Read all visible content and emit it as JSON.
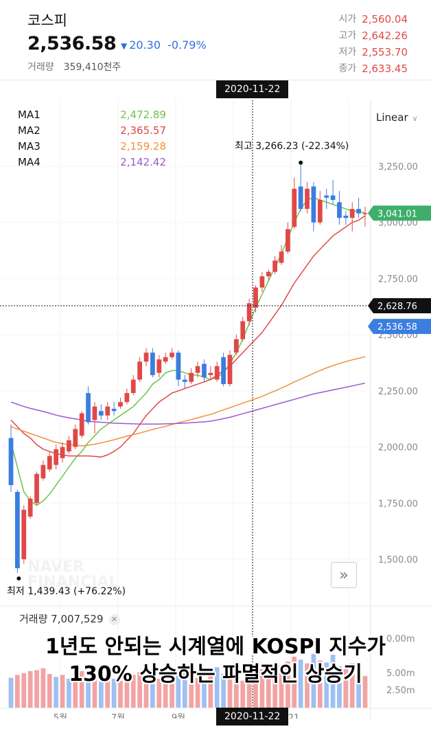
{
  "header": {
    "title": "코스피",
    "price": "2,536.58",
    "change_arrow": "▼",
    "change": "20.30",
    "change_pct": "-0.79%",
    "volume_label": "거래량",
    "volume_value": "359,410천주"
  },
  "ohlc": [
    {
      "label": "시가",
      "value": "2,560.04"
    },
    {
      "label": "고가",
      "value": "2,642.26"
    },
    {
      "label": "저가",
      "value": "2,553.70"
    },
    {
      "label": "종가",
      "value": "2,633.45"
    }
  ],
  "crosshair_date": "2020-11-22",
  "moving_averages": [
    {
      "label": "MA1",
      "value": "2,472.89",
      "color": "#6cc24a"
    },
    {
      "label": "MA2",
      "value": "2,365.57",
      "color": "#e04848"
    },
    {
      "label": "MA3",
      "value": "2,159.28",
      "color": "#f0903a"
    },
    {
      "label": "MA4",
      "value": "2,142.42",
      "color": "#9b59d0"
    }
  ],
  "scale_selector": "Linear",
  "high_label": "최고 3,266.23 (-22.34%)",
  "low_label": "최저 1,439.43 (+76.22%)",
  "price_tags": [
    {
      "value": "3,041.01",
      "color": "#3fae6a",
      "price": 3041.01
    },
    {
      "value": "2,628.76",
      "color": "#111111",
      "price": 2628.76
    },
    {
      "value": "2,536.58",
      "color": "#3b7de0",
      "price": 2536.58
    }
  ],
  "volume_summary": "거래량 7,007,529",
  "volume_axis_labels": [
    "0.00m",
    "5.00m",
    "2.50m"
  ],
  "x_axis_labels": [
    "5월",
    "7월",
    "9월",
    "21"
  ],
  "watermark": [
    "NAVER",
    "FINANCIAL"
  ],
  "caption_lines": [
    "1년도 안되는 시계열에 KOSPI 지수가",
    "130% 상승하는 파멸적인 상승기"
  ],
  "colors": {
    "up": "#e04848",
    "down": "#3b7de0",
    "crosshair": "#111111"
  },
  "chart_data": {
    "type": "candlestick",
    "title": "코스피",
    "ylim": [
      1400,
      3350
    ],
    "y_ticks": [
      "3,250.00",
      "3,000.00",
      "2,750.00",
      "2,500.00",
      "2,250.00",
      "2,000.00",
      "1,750.00",
      "1,500.00"
    ],
    "y_tick_values": [
      3250,
      3000,
      2750,
      2500,
      2250,
      2000,
      1750,
      1500
    ],
    "x_labels": [
      "5월",
      "7월",
      "9월",
      "21"
    ],
    "candles": [
      [
        2040,
        1830,
        2100,
        1800
      ],
      [
        1800,
        1460,
        1810,
        1439
      ],
      [
        1500,
        1720,
        1740,
        1480
      ],
      [
        1690,
        1770,
        1780,
        1680
      ],
      [
        1750,
        1880,
        1890,
        1740
      ],
      [
        1860,
        1920,
        1940,
        1850
      ],
      [
        1900,
        1960,
        1980,
        1890
      ],
      [
        1920,
        1990,
        2010,
        1900
      ],
      [
        1950,
        2000,
        2020,
        1930
      ],
      [
        1980,
        2030,
        2050,
        1970
      ],
      [
        2000,
        2080,
        2100,
        1990
      ],
      [
        2050,
        2150,
        2160,
        2040
      ],
      [
        2240,
        2110,
        2270,
        2100
      ],
      [
        2120,
        2180,
        2200,
        2060
      ],
      [
        2160,
        2140,
        2190,
        2120
      ],
      [
        2140,
        2180,
        2200,
        2120
      ],
      [
        2170,
        2160,
        2200,
        2140
      ],
      [
        2180,
        2200,
        2220,
        2170
      ],
      [
        2200,
        2240,
        2260,
        2190
      ],
      [
        2240,
        2300,
        2320,
        2230
      ],
      [
        2300,
        2380,
        2400,
        2290
      ],
      [
        2380,
        2420,
        2440,
        2360
      ],
      [
        2420,
        2320,
        2440,
        2310
      ],
      [
        2330,
        2390,
        2410,
        2310
      ],
      [
        2380,
        2400,
        2420,
        2370
      ],
      [
        2400,
        2420,
        2440,
        2390
      ],
      [
        2420,
        2300,
        2430,
        2270
      ],
      [
        2300,
        2290,
        2320,
        2260
      ],
      [
        2290,
        2330,
        2350,
        2280
      ],
      [
        2330,
        2360,
        2380,
        2310
      ],
      [
        2370,
        2310,
        2390,
        2290
      ],
      [
        2320,
        2330,
        2360,
        2300
      ],
      [
        2300,
        2360,
        2380,
        2290
      ],
      [
        2400,
        2280,
        2420,
        2270
      ],
      [
        2280,
        2410,
        2430,
        2270
      ],
      [
        2420,
        2480,
        2500,
        2410
      ],
      [
        2480,
        2560,
        2580,
        2470
      ],
      [
        2560,
        2640,
        2660,
        2540
      ],
      [
        2620,
        2710,
        2720,
        2600
      ],
      [
        2710,
        2760,
        2780,
        2690
      ],
      [
        2760,
        2780,
        2790,
        2740
      ],
      [
        2780,
        2830,
        2850,
        2770
      ],
      [
        2820,
        2870,
        2900,
        2810
      ],
      [
        2870,
        2970,
        3000,
        2860
      ],
      [
        2980,
        3150,
        3200,
        2970
      ],
      [
        3160,
        3060,
        3266,
        3050
      ],
      [
        3060,
        3150,
        3180,
        3040
      ],
      [
        3160,
        3000,
        3180,
        2960
      ],
      [
        3000,
        3100,
        3140,
        2990
      ],
      [
        3120,
        3110,
        3150,
        3060
      ],
      [
        3120,
        3100,
        3190,
        3080
      ],
      [
        3090,
        3020,
        3140,
        2990
      ],
      [
        3030,
        3020,
        3050,
        2990
      ],
      [
        3020,
        3060,
        3090,
        2960
      ],
      [
        3060,
        3040,
        3110,
        3020
      ],
      [
        3040,
        3041,
        3070,
        2980
      ]
    ],
    "ma_series": [
      {
        "label": "MA1",
        "values": [
          2020,
          1910,
          1800,
          1760,
          1740,
          1760,
          1790,
          1830,
          1870,
          1910,
          1950,
          1980,
          2020,
          2050,
          2080,
          2100,
          2120,
          2140,
          2160,
          2180,
          2210,
          2240,
          2280,
          2300,
          2330,
          2340,
          2340,
          2330,
          2320,
          2320,
          2310,
          2300,
          2310,
          2330,
          2370,
          2420,
          2480,
          2550,
          2620,
          2680,
          2740,
          2800,
          2860,
          2930,
          3000,
          3060,
          3100,
          3110,
          3100,
          3090,
          3080,
          3070,
          3060,
          3050,
          3050,
          3041
        ]
      },
      {
        "label": "MA2",
        "values": [
          2120,
          2090,
          2060,
          2040,
          2010,
          1990,
          1980,
          1970,
          1965,
          1960,
          1960,
          1960,
          1960,
          1958,
          1955,
          1965,
          1980,
          2000,
          2030,
          2060,
          2100,
          2140,
          2170,
          2200,
          2220,
          2240,
          2250,
          2260,
          2270,
          2280,
          2290,
          2300,
          2320,
          2340,
          2360,
          2390,
          2420,
          2450,
          2480,
          2510,
          2550,
          2590,
          2630,
          2680,
          2730,
          2770,
          2810,
          2850,
          2880,
          2910,
          2940,
          2960,
          2980,
          3000,
          3010,
          3030
        ]
      },
      {
        "label": "MA3",
        "values": [
          2090,
          2080,
          2070,
          2060,
          2050,
          2040,
          2030,
          2020,
          2015,
          2010,
          2008,
          2005,
          2008,
          2012,
          2018,
          2025,
          2032,
          2040,
          2048,
          2055,
          2062,
          2070,
          2078,
          2085,
          2092,
          2100,
          2108,
          2115,
          2122,
          2130,
          2138,
          2145,
          2155,
          2165,
          2175,
          2185,
          2195,
          2205,
          2215,
          2225,
          2238,
          2250,
          2262,
          2275,
          2290,
          2302,
          2315,
          2328,
          2340,
          2352,
          2362,
          2372,
          2380,
          2388,
          2395,
          2402
        ]
      },
      {
        "label": "MA4",
        "values": [
          2200,
          2190,
          2180,
          2172,
          2165,
          2158,
          2150,
          2142,
          2135,
          2130,
          2125,
          2120,
          2115,
          2112,
          2110,
          2108,
          2106,
          2105,
          2104,
          2103,
          2102,
          2102,
          2102,
          2102,
          2103,
          2104,
          2105,
          2106,
          2108,
          2110,
          2112,
          2115,
          2120,
          2126,
          2132,
          2140,
          2148,
          2156,
          2164,
          2172,
          2180,
          2188,
          2196,
          2204,
          2212,
          2220,
          2228,
          2236,
          2242,
          2248,
          2254,
          2260,
          2266,
          2272,
          2278,
          2284
        ]
      }
    ],
    "volume": [
      3.1,
      3.4,
      3.6,
      3.8,
      3.9,
      4.1,
      3.5,
      3.2,
      3.4,
      3.0,
      3.6,
      3.8,
      3.1,
      2.9,
      3.3,
      3.5,
      3.0,
      2.8,
      3.2,
      3.4,
      3.7,
      3.1,
      2.6,
      3.0,
      3.3,
      3.5,
      3.9,
      3.6,
      2.4,
      3.1,
      2.9,
      3.8,
      4.2,
      3.5,
      3.3,
      3.0,
      2.8,
      3.4,
      3.6,
      4.0,
      3.9,
      3.4,
      4.4,
      4.8,
      5.3,
      5.0,
      4.6,
      5.6,
      4.9,
      4.7,
      5.5,
      4.3,
      4.0,
      4.6,
      3.8,
      3.3
    ],
    "volume_up": [
      0,
      1,
      1,
      1,
      1,
      1,
      1,
      0,
      1,
      0,
      1,
      1,
      0,
      1,
      0,
      1,
      0,
      1,
      1,
      1,
      1,
      1,
      0,
      1,
      1,
      1,
      0,
      0,
      1,
      1,
      0,
      1,
      0,
      0,
      1,
      1,
      1,
      1,
      1,
      1,
      1,
      1,
      1,
      1,
      1,
      0,
      1,
      0,
      1,
      0,
      0,
      0,
      1,
      1,
      0,
      1
    ]
  }
}
